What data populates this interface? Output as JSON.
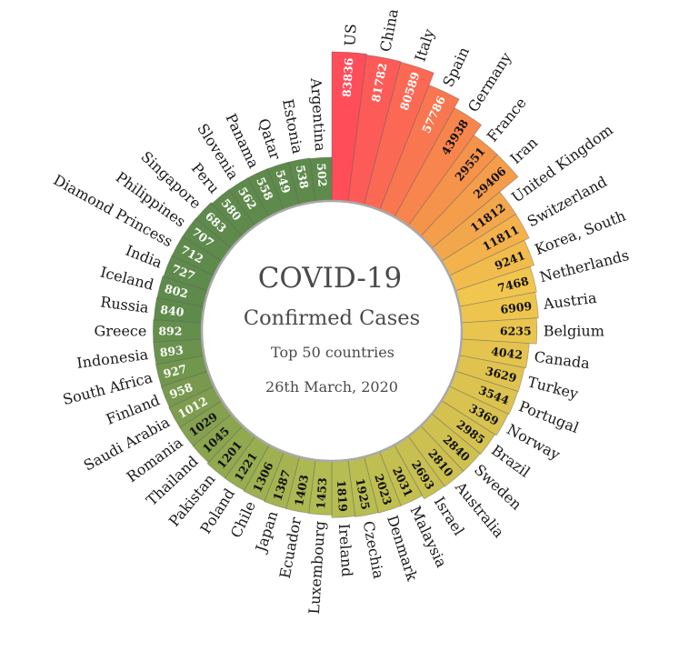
{
  "center": {
    "title": "COVID-19",
    "subtitle": "Confirmed Cases",
    "line1": "Top 50 countries",
    "line2": "26th March, 2020"
  },
  "chart_data": {
    "type": "radial-bar",
    "title": "COVID-19 Confirmed Cases",
    "subtitle": "Top 50 countries",
    "date": "26th March, 2020",
    "categories": [
      "US",
      "China",
      "Italy",
      "Spain",
      "Germany",
      "France",
      "Iran",
      "United Kingdom",
      "Switzerland",
      "Korea, South",
      "Netherlands",
      "Austria",
      "Belgium",
      "Canada",
      "Turkey",
      "Portugal",
      "Norway",
      "Brazil",
      "Sweden",
      "Australia",
      "Israel",
      "Malaysia",
      "Denmark",
      "Czechia",
      "Ireland",
      "Luxembourg",
      "Ecuador",
      "Japan",
      "Chile",
      "Poland",
      "Pakistan",
      "Thailand",
      "Romania",
      "Saudi Arabia",
      "Finland",
      "South Africa",
      "Indonesia",
      "Greece",
      "Russia",
      "Iceland",
      "India",
      "Diamond Princess",
      "Philippines",
      "Singapore",
      "Peru",
      "Slovenia",
      "Panama",
      "Qatar",
      "Estonia",
      "Argentina"
    ],
    "values": [
      83836,
      81782,
      80589,
      57786,
      43938,
      29551,
      29406,
      11812,
      11811,
      9241,
      7468,
      6909,
      6235,
      4042,
      3629,
      3544,
      3369,
      2985,
      2840,
      2810,
      2693,
      2031,
      2023,
      1925,
      1819,
      1453,
      1403,
      1387,
      1306,
      1221,
      1201,
      1045,
      1029,
      1012,
      958,
      927,
      893,
      892,
      840,
      802,
      727,
      712,
      707,
      683,
      580,
      562,
      558,
      549,
      538,
      502
    ],
    "colors": {
      "high": "#ff4d5a",
      "orange": "#f5934a",
      "yellow": "#f1c64e",
      "olive": "#b2bc52",
      "green": "#5e8a4c"
    }
  }
}
